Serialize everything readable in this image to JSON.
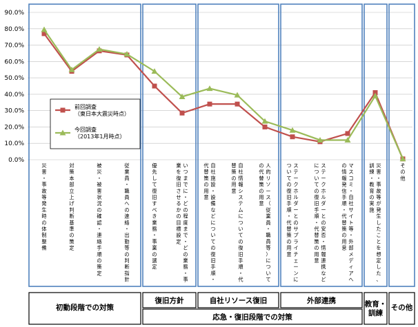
{
  "chart_data": {
    "type": "line",
    "ylim": [
      0,
      90
    ],
    "yticks": [
      "0.0%",
      "10.0%",
      "20.0%",
      "30.0%",
      "40.0%",
      "50.0%",
      "60.0%",
      "70.0%",
      "80.0%",
      "90.0%"
    ],
    "categories": [
      "災害・事故等発生時の体制整備",
      "対策本部立上げ判断基準の策定",
      "被災・被害状況の確認・連絡手順の策定",
      "従業員・職員への連絡・出勤等の判断指針",
      "優先して復旧すべき業務・事業の選定",
      "いつまでに・どの程度まで・どの業務・事業を復旧させるかの目標設定",
      "自社施設・設備などについての復旧手順・代替策の用意",
      "自社情報システムについての復旧手順・代替策の用意",
      "人的リソース（従業員・職員等）についての代替策の用意",
      "ステークホルダーとのサプライチェーンについての復旧手順・代替策の用意",
      "ステークホルダーとの安否・情報連携などについての復旧手順・代替策の用意",
      "マスコミ・自社サイト等・外部メディアへの情報発信手順・代替策の用意",
      "災害・事故等が発生したことを想定した、訓練・教育の実施",
      "その他"
    ],
    "series": [
      {
        "name": "前回調査\n（東日本大震災時点）",
        "color": "#c0504d",
        "marker": "square",
        "values": [
          77,
          54,
          66.5,
          64,
          45,
          28.5,
          34,
          34,
          20,
          14,
          11,
          16,
          41,
          0.5
        ]
      },
      {
        "name": "今回調査\n（2013年1月時点）",
        "color": "#9bbb59",
        "marker": "triangle",
        "values": [
          79.5,
          55,
          67.5,
          64.5,
          54,
          38.5,
          43.5,
          39.5,
          23.5,
          18,
          12,
          12,
          39,
          0.5
        ]
      }
    ],
    "legend": {
      "position": "middle-left",
      "labels": [
        [
          "前回調査",
          "（東日本大震災時点）"
        ],
        [
          "今回調査",
          "（2013年1月時点）"
        ]
      ]
    },
    "groups": [
      {
        "label": "初動段階での対策",
        "from": 0,
        "to": 3
      },
      {
        "label": "復旧方針",
        "from": 4,
        "to": 5
      },
      {
        "label": "自社リソース復旧",
        "from": 6,
        "to": 7
      },
      {
        "label": "外部連携",
        "from": 8,
        "to": 11
      },
      {
        "label": "教育・訓練",
        "from": 12,
        "to": 12
      },
      {
        "label": "その他",
        "from": 13,
        "to": 13
      }
    ],
    "supergroup": {
      "label": "応急・復旧段階での対策",
      "from": 4,
      "to": 11
    },
    "colors": {
      "group_border": "#4f81bd",
      "grid": "#bfbfbf",
      "band_border": "#000000"
    }
  }
}
